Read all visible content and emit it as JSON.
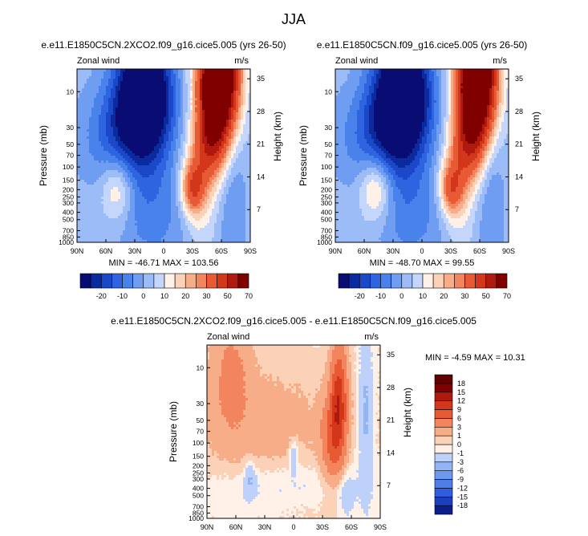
{
  "figure": {
    "title": "JJA"
  },
  "chart_data": [
    {
      "type": "contour",
      "title": "e.e11.E1850C5CN.2XCO2.f09_g16.cice5.005 (yrs 26-50)",
      "variable": "Zonal wind",
      "units": "m/s",
      "xlabel": "",
      "ylabel": "Pressure (mb)",
      "y2label": "Height (km)",
      "x_ticks": [
        "90N",
        "60N",
        "30N",
        "0",
        "30S",
        "60S",
        "90S"
      ],
      "x_values": [
        90,
        60,
        30,
        0,
        -30,
        -60,
        -90
      ],
      "y_ticks": [
        "10",
        "30",
        "50",
        "70",
        "100",
        "150",
        "200",
        "250",
        "300",
        "400",
        "500",
        "700",
        "850",
        "1000"
      ],
      "y_values": [
        10,
        30,
        50,
        70,
        100,
        150,
        200,
        250,
        300,
        400,
        500,
        700,
        850,
        1000
      ],
      "height_ticks": [
        "7",
        "14",
        "21",
        "28",
        "35"
      ],
      "height_values": [
        7,
        14,
        21,
        28,
        35
      ],
      "ylim": [
        1000,
        5
      ],
      "xlim": [
        90,
        -90
      ],
      "min_max_text": "MIN = -46.71   MAX = 103.56",
      "min": -46.71,
      "max": 103.56,
      "features": {
        "easterly_jet_center": [
          20,
          10
        ],
        "easterly_strength": -46.7,
        "westerly_jet_upper": [
          -55,
          7
        ],
        "westerly_strength": 103.6,
        "subtropical_jet": [
          -30,
          200
        ],
        "subtropical_strength": 36,
        "nh_westerly": [
          50,
          200
        ],
        "nh_westerly_strength": 20
      },
      "colorbar": {
        "levels": [
          -25,
          -20,
          -15,
          -10,
          -5,
          0,
          5,
          10,
          15,
          20,
          25,
          30,
          40,
          50,
          60,
          70
        ],
        "labels": [
          "-20",
          "-10",
          "0",
          "10",
          "20",
          "30",
          "50",
          "70"
        ]
      }
    },
    {
      "type": "contour",
      "title": "e.e11.E1850C5CN.f09_g16.cice5.005 (yrs 26-50)",
      "variable": "Zonal wind",
      "units": "m/s",
      "xlabel": "",
      "ylabel": "Pressure (mb)",
      "y2label": "Height (km)",
      "x_ticks": [
        "90N",
        "60N",
        "30N",
        "0",
        "30S",
        "60S",
        "90S"
      ],
      "x_values": [
        90,
        60,
        30,
        0,
        -30,
        -60,
        -90
      ],
      "y_ticks": [
        "10",
        "30",
        "50",
        "70",
        "100",
        "150",
        "200",
        "250",
        "300",
        "400",
        "500",
        "700",
        "850",
        "1000"
      ],
      "y_values": [
        10,
        30,
        50,
        70,
        100,
        150,
        200,
        250,
        300,
        400,
        500,
        700,
        850,
        1000
      ],
      "height_ticks": [
        "7",
        "14",
        "21",
        "28",
        "35"
      ],
      "height_values": [
        7,
        14,
        21,
        28,
        35
      ],
      "ylim": [
        1000,
        5
      ],
      "xlim": [
        90,
        -90
      ],
      "min_max_text": "MIN = -48.70   MAX = 99.55",
      "min": -48.7,
      "max": 99.55,
      "features": {
        "easterly_jet_center": [
          20,
          10
        ],
        "easterly_strength": -48.7,
        "westerly_jet_upper": [
          -55,
          7
        ],
        "westerly_strength": 99.6,
        "subtropical_jet": [
          -30,
          200
        ],
        "subtropical_strength": 33,
        "nh_westerly": [
          50,
          200
        ],
        "nh_westerly_strength": 23
      },
      "colorbar": {
        "levels": [
          -25,
          -20,
          -15,
          -10,
          -5,
          0,
          5,
          10,
          15,
          20,
          25,
          30,
          40,
          50,
          60,
          70
        ],
        "labels": [
          "-20",
          "-10",
          "0",
          "10",
          "20",
          "30",
          "50",
          "70"
        ]
      }
    },
    {
      "type": "contour",
      "title": "e.e11.E1850C5CN.2XCO2.f09_g16.cice5.005 - e.e11.E1850C5CN.f09_g16.cice5.005",
      "variable": "Zonal wind",
      "units": "m/s",
      "xlabel": "",
      "ylabel": "Pressure (mb)",
      "y2label": "Height (km)",
      "x_ticks": [
        "90N",
        "60N",
        "30N",
        "0",
        "30S",
        "60S",
        "90S"
      ],
      "x_values": [
        90,
        60,
        30,
        0,
        -30,
        -60,
        -90
      ],
      "y_ticks": [
        "10",
        "30",
        "50",
        "70",
        "100",
        "150",
        "200",
        "250",
        "300",
        "400",
        "500",
        "700",
        "850",
        "1000"
      ],
      "y_values": [
        10,
        30,
        50,
        70,
        100,
        150,
        200,
        250,
        300,
        400,
        500,
        700,
        850,
        1000
      ],
      "height_ticks": [
        "7",
        "14",
        "21",
        "28",
        "35"
      ],
      "height_values": [
        7,
        14,
        21,
        28,
        35
      ],
      "ylim": [
        1000,
        5
      ],
      "xlim": [
        90,
        -90
      ],
      "min_max_text": "MIN = -4.59   MAX = 10.31",
      "min": -4.59,
      "max": 10.31,
      "features": {
        "sh_upper_max": [
          -47,
          20
        ],
        "sh_upper_strength": 10.3,
        "midlat_positive": [
          -40,
          60
        ],
        "nh_positive": [
          70,
          30
        ],
        "negative_band": [
          -75,
          30
        ],
        "min_center": [
          0,
          150
        ]
      },
      "colorbar": {
        "levels": [
          -18,
          -15,
          -12,
          -9,
          -6,
          -3,
          -1,
          0,
          1,
          3,
          6,
          9,
          12,
          15,
          18
        ],
        "labels": [
          "-18",
          "-15",
          "-12",
          "-9",
          "-6",
          "-3",
          "-1",
          "0",
          "1",
          "3",
          "6",
          "9",
          "12",
          "15",
          "18"
        ]
      }
    }
  ],
  "colors": {
    "scale16": [
      "#080c73",
      "#0b2a9e",
      "#1a48c8",
      "#2e64e0",
      "#4a82ec",
      "#6e9df2",
      "#9bbcf7",
      "#c4d6fb",
      "#fff1e8",
      "#fbd2b8",
      "#f8ad89",
      "#f2855e",
      "#e85a33",
      "#d2371b",
      "#b0190d",
      "#800000"
    ],
    "scale16_diff": [
      "#0a1d8c",
      "#1b3fbd",
      "#2f5fe0",
      "#4c7de9",
      "#6d98ef",
      "#94b5f4",
      "#bdd1fa",
      "#fff1e8",
      "#fbd2b8",
      "#f8ad89",
      "#f2855e",
      "#e85a33",
      "#d2371b",
      "#b0190d",
      "#800000",
      "#600000"
    ]
  }
}
